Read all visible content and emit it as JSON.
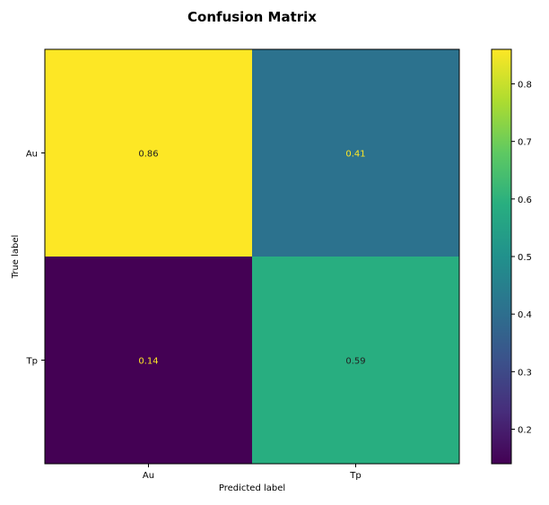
{
  "chart_data": {
    "type": "heatmap",
    "title": "Confusion Matrix",
    "xlabel": "Predicted label",
    "ylabel": "True label",
    "x_categories": [
      "Au",
      "Tp"
    ],
    "y_categories": [
      "Au",
      "Tp"
    ],
    "values": [
      [
        0.86,
        0.41
      ],
      [
        0.14,
        0.59
      ]
    ],
    "colormap": "viridis",
    "colorbar": {
      "min": 0.14,
      "max": 0.86,
      "ticks": [
        0.2,
        0.3,
        0.4,
        0.5,
        0.6,
        0.7,
        0.8
      ]
    },
    "grid": false
  }
}
